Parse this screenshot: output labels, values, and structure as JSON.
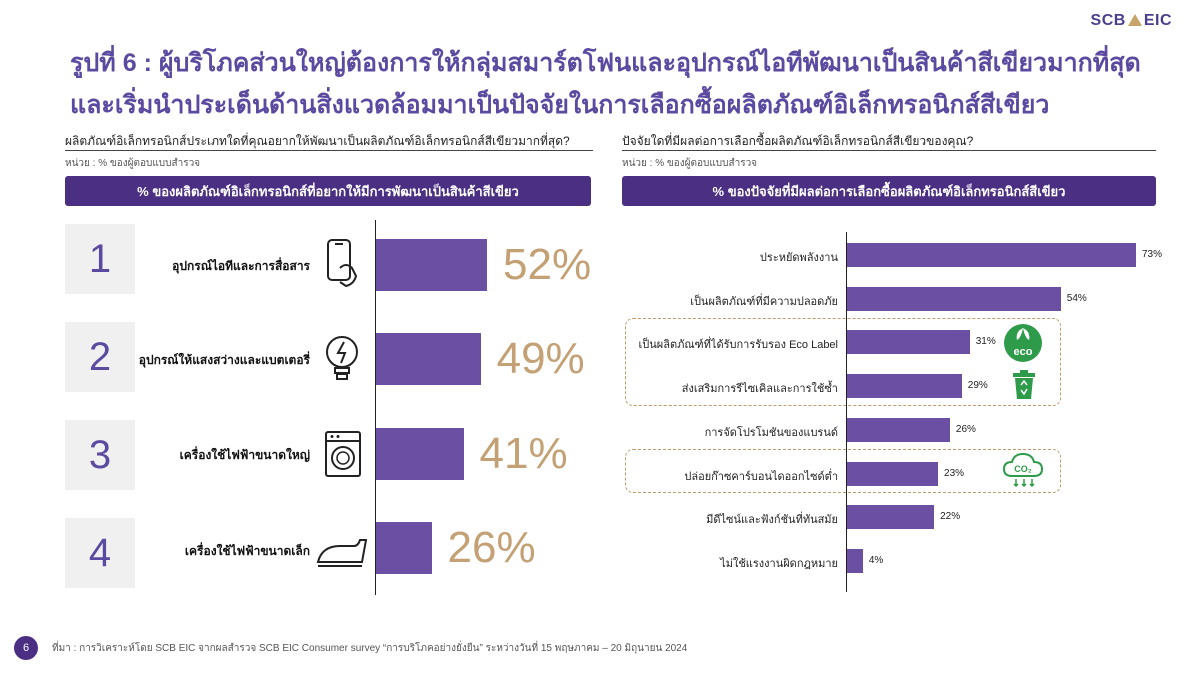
{
  "logo": {
    "left": "SCB",
    "right": "EIC"
  },
  "title": {
    "line1": "รูปที่ 6 : ผู้บริโภคส่วนใหญ่ต้องการให้กลุ่มสมาร์ตโฟนและอุปกรณ์ไอทีพัฒนาเป็นสินค้าสีเขียวมากที่สุด",
    "line2": "และเริ่มนำประเด็นด้านสิ่งแวดล้อมมาเป็นปัจจัยในการเลือกซื้อผลิตภัณฑ์อิเล็กทรอนิกส์สีเขียว"
  },
  "left_panel": {
    "question": "ผลิตภัณฑ์อิเล็กทรอนิกส์ประเภทใดที่คุณอยากให้พัฒนาเป็นผลิตภัณฑ์อิเล็กทรอนิกส์สีเขียวมากที่สุด?",
    "unit": "หน่วย : % ของผู้ตอบแบบสำรวจ",
    "banner": "% ของผลิตภัณฑ์อิเล็กทรอนิกส์ที่อยากให้มีการพัฒนาเป็นสินค้าสีเขียว"
  },
  "right_panel": {
    "question": "ปัจจัยใดที่มีผลต่อการเลือกซื้อผลิตภัณฑ์อิเล็กทรอนิกส์สีเขียวของคุณ?",
    "unit": "หน่วย : % ของผู้ตอบแบบสำรวจ",
    "banner": "% ของปัจจัยที่มีผลต่อการเลือกซื้อผลิตภัณฑ์อิเล็กทรอนิกส์สีเขียว",
    "eco_icon_text": "eco",
    "co2_icon_text": "CO₂"
  },
  "chart_data": [
    {
      "type": "bar",
      "orientation": "horizontal",
      "ranks": [
        "1",
        "2",
        "3",
        "4"
      ],
      "categories": [
        "อุปกรณ์ไอทีและการสื่อสาร",
        "อุปกรณ์ให้แสงสว่างและแบตเตอรี่",
        "เครื่องใช้ไฟฟ้าขนาดใหญ่",
        "เครื่องใช้ไฟฟ้าขนาดเล็ก"
      ],
      "values": [
        52,
        49,
        41,
        26
      ],
      "value_labels": [
        "52%",
        "49%",
        "41%",
        "26%"
      ],
      "icons": [
        "smartphone-icon",
        "lightbulb-icon",
        "washing-machine-icon",
        "iron-icon"
      ],
      "xlim": [
        0,
        100
      ],
      "bar_color": "#6a4fa3",
      "label_color": "#c3a174"
    },
    {
      "type": "bar",
      "orientation": "horizontal",
      "categories": [
        "ประหยัดพลังงาน",
        "เป็นผลิตภัณฑ์ที่มีความปลอดภัย",
        "เป็นผลิตภัณฑ์ที่ได้รับการรับรอง Eco Label",
        "ส่งเสริมการรีไซเคิลและการใช้ซ้ำ",
        "การจัดโปรโมชันของแบรนด์",
        "ปล่อยก๊าซคาร์บอนไดออกไซด์ต่ำ",
        "มีดีไซน์และฟังก์ชันที่ทันสมัย",
        "ไม่ใช้แรงงานผิดกฎหมาย"
      ],
      "values": [
        73,
        54,
        31,
        29,
        26,
        23,
        22,
        4
      ],
      "value_labels": [
        "73%",
        "54%",
        "31%",
        "29%",
        "26%",
        "23%",
        "22%",
        "4%"
      ],
      "highlighted_groups": [
        [
          2,
          3
        ],
        [
          5
        ]
      ],
      "xlim": [
        0,
        100
      ],
      "bar_color": "#6a4fa3"
    }
  ],
  "footer": {
    "page": "6",
    "source": "ที่มา : การวิเคราะห์โดย SCB EIC จากผลสำรวจ SCB EIC Consumer survey “การบริโภคอย่างยั่งยืน” ระหว่างวันที่ 15 พฤษภาคม – 20 มิถุนายน 2024"
  }
}
